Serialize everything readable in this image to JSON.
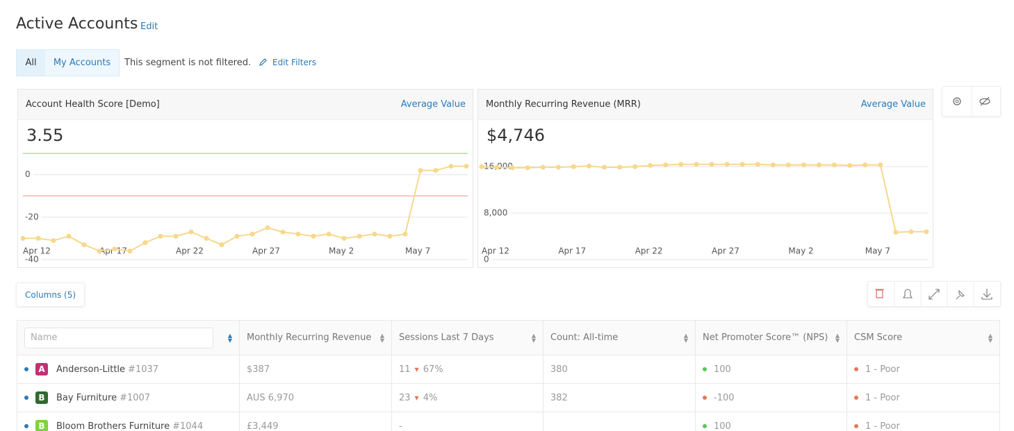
{
  "header": {
    "title": "Active Accounts",
    "edit": "Edit"
  },
  "segment": {
    "tabs": [
      "All",
      "My Accounts"
    ],
    "status": "This segment is not filtered.",
    "edit_filters": "Edit Filters"
  },
  "chart_data": [
    {
      "type": "line",
      "title": "Account Health Score [Demo]",
      "headline": "3.55",
      "mode": "Average Value",
      "categories": [
        "Apr 12",
        null,
        null,
        null,
        null,
        "Apr 17",
        null,
        null,
        null,
        null,
        "Apr 22",
        null,
        null,
        null,
        null,
        "Apr 27",
        null,
        null,
        null,
        null,
        "May 2",
        null,
        null,
        null,
        null,
        "May 7",
        null,
        null,
        null,
        null
      ],
      "values": [
        -30,
        -30,
        -31,
        -29,
        -33,
        -36,
        -35,
        -36,
        -32,
        -29,
        -29,
        -27,
        -30,
        -33,
        -29,
        -28,
        -25,
        -27,
        -28,
        -29,
        -28,
        -30,
        -29,
        -28,
        -29,
        -28,
        2,
        2,
        4,
        4
      ],
      "color": "#f7d88c",
      "ylim": [
        -40,
        12
      ],
      "yticks": [
        0,
        -20,
        -40
      ],
      "grid": true,
      "reference_lines": [
        {
          "value": 10,
          "color": "#8fdc8f"
        },
        {
          "value": -10,
          "color": "#e9a895"
        }
      ]
    },
    {
      "type": "line",
      "title": "Monthly Recurring Revenue (MRR)",
      "headline": "$4,746",
      "mode": "Average Value",
      "categories": [
        "Apr 12",
        null,
        null,
        null,
        null,
        "Apr 17",
        null,
        null,
        null,
        null,
        "Apr 22",
        null,
        null,
        null,
        null,
        "Apr 27",
        null,
        null,
        null,
        null,
        "May 2",
        null,
        null,
        null,
        null,
        "May 7",
        null,
        null,
        null,
        null
      ],
      "values": [
        16000,
        15900,
        15800,
        15800,
        15900,
        15900,
        16000,
        16100,
        15900,
        15900,
        16000,
        16200,
        16300,
        16400,
        16400,
        16400,
        16400,
        16400,
        16400,
        16300,
        16300,
        16300,
        16300,
        16300,
        16200,
        16300,
        16300,
        4700,
        4800,
        4800
      ],
      "color": "#f7d88c",
      "ylim": [
        0,
        19000
      ],
      "yticks": [
        {
          "value": 16000,
          "label": "16,000"
        },
        {
          "value": 8000,
          "label": "8,000"
        },
        0
      ],
      "grid": true
    }
  ],
  "columns_button": "Columns (5)",
  "table": {
    "name_placeholder": "Name",
    "headers": [
      "Monthly Recurring Revenue",
      "Sessions Last 7 Days",
      "Count: All-time",
      "Net Promoter Score™ (NPS)",
      "CSM Score"
    ],
    "rows": [
      {
        "avatar": "A",
        "avatar_color": "#c42f73",
        "name": "Anderson-Little",
        "id": "#1037",
        "mrr": "$387",
        "sessions": 11,
        "sessions_change": "67%",
        "count": 380,
        "nps": 100,
        "nps_color": "#5cc45c",
        "csm": "1 - Poor",
        "csm_color": "#e07a5a"
      },
      {
        "avatar": "B",
        "avatar_color": "#2f6b2f",
        "name": "Bay Furniture",
        "id": "#1007",
        "mrr": "AUS 6,970",
        "sessions": 23,
        "sessions_change": "4%",
        "count": 382,
        "nps": -100,
        "nps_color": "#e07a5a",
        "csm": "1 - Poor",
        "csm_color": "#e07a5a"
      },
      {
        "avatar": "B",
        "avatar_color": "#7fd23c",
        "name": "Bloom Brothers Furniture",
        "id": "#1044",
        "mrr": "£3,449",
        "sessions": "-",
        "nps": 100,
        "nps_color": "#5cc45c",
        "csm": "1 - Poor",
        "csm_color": "#e07a5a"
      }
    ]
  }
}
